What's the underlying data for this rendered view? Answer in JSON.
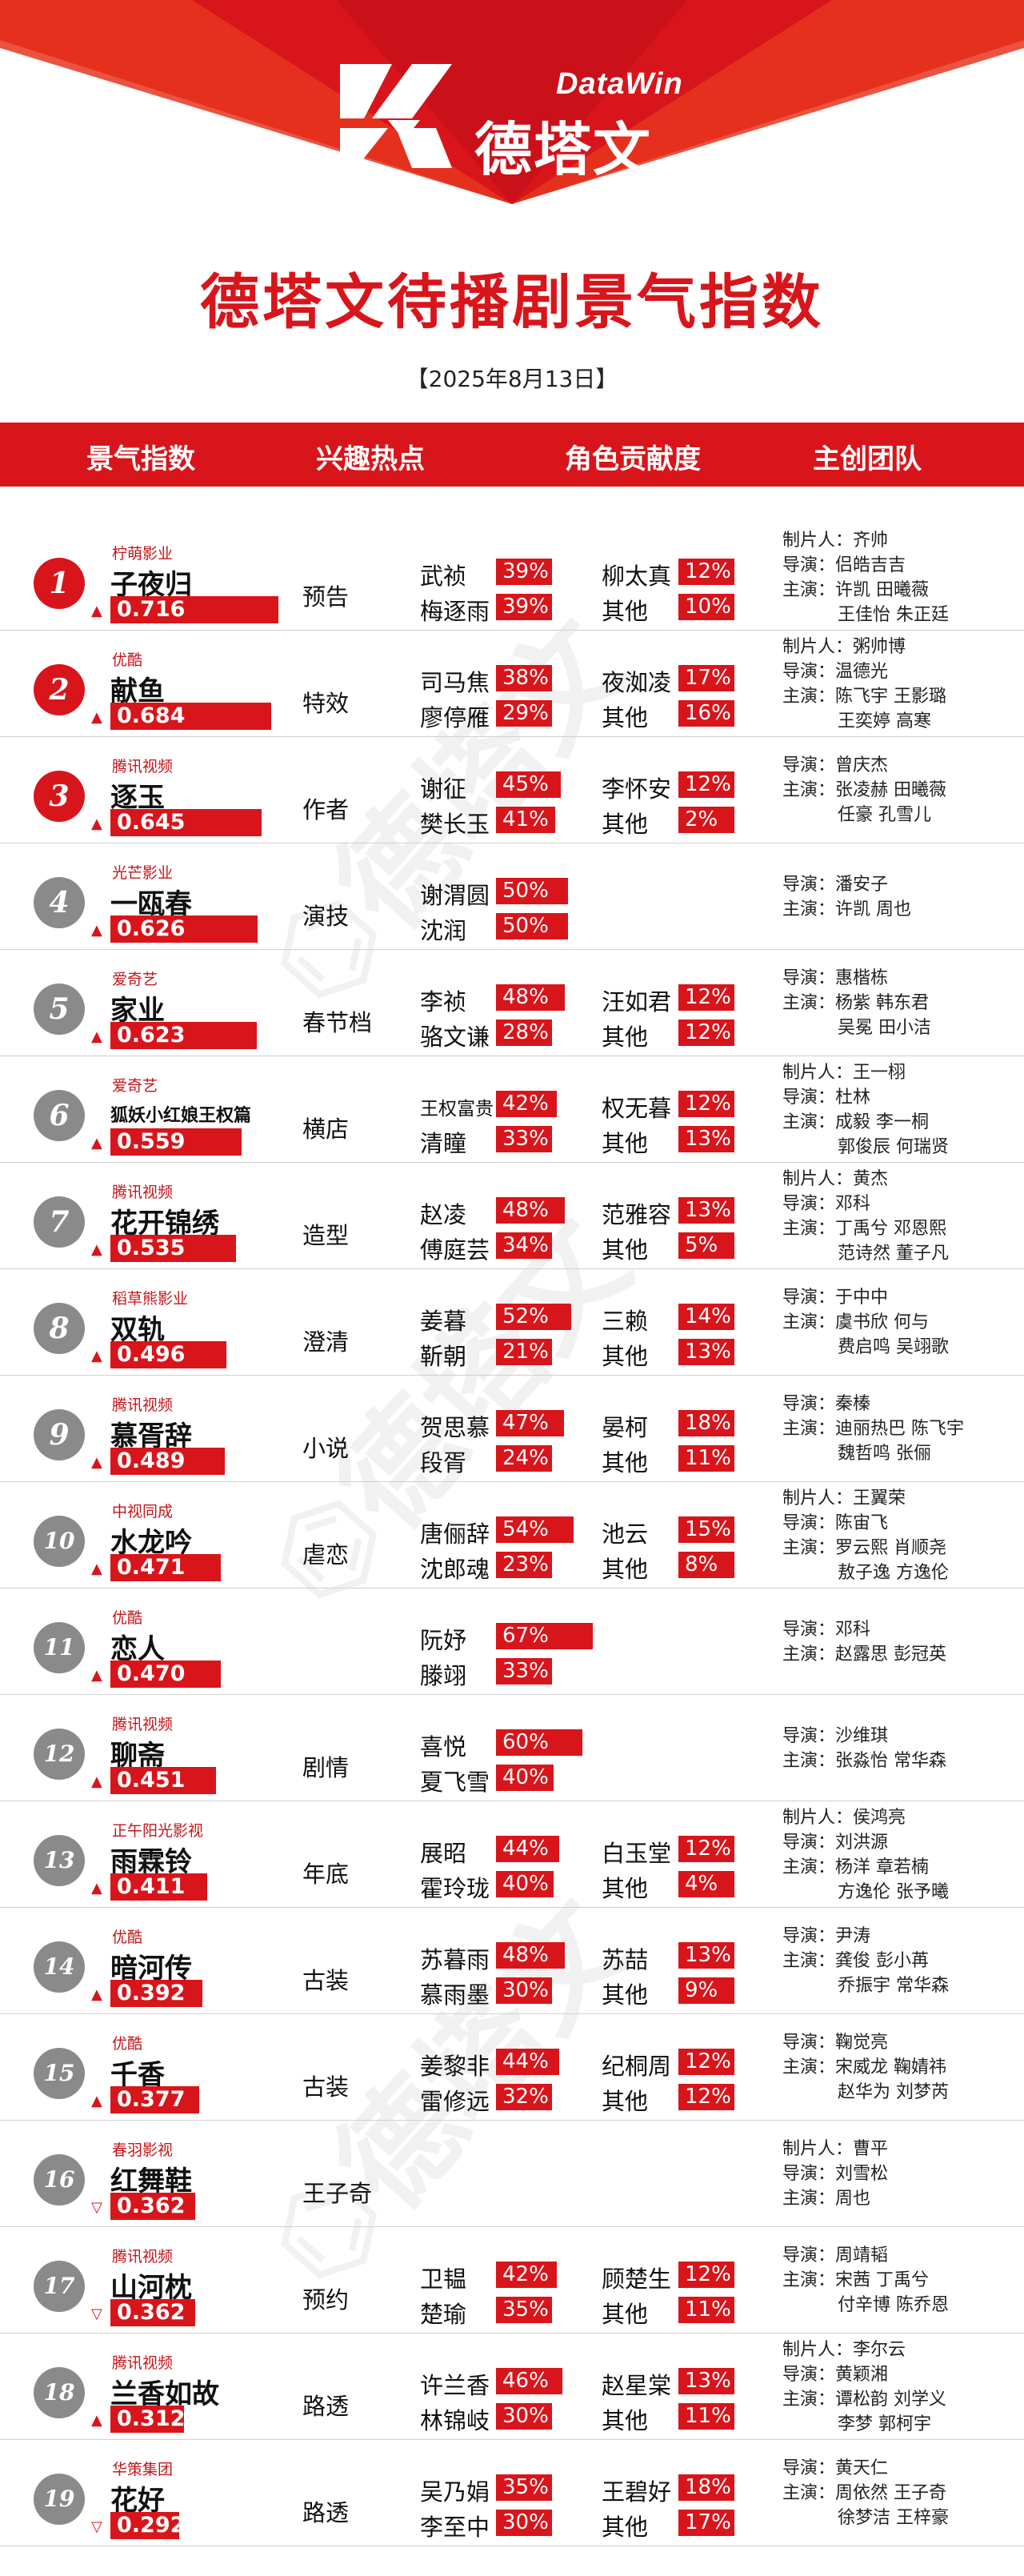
{
  "brand": {
    "name_en": "DataWin",
    "name_cn": "德塔文"
  },
  "title": "德塔文待播剧景气指数",
  "date": "【2025年8月13日】",
  "columns": [
    "景气指数",
    "兴趣热点",
    "角色贡献度",
    "主创团队"
  ],
  "colors": {
    "accent": "#d8151b",
    "badge_gray": "#8a8a8a"
  },
  "chart_data": {
    "type": "table",
    "rows": [
      {
        "rank": "1",
        "platform": "柠萌影业",
        "drama": "子夜归",
        "trend": "up",
        "score": 0.716,
        "score_label": "0.716",
        "hotspot": "预告",
        "roles": [
          {
            "name": "武祯",
            "pct": 39,
            "label": "39%"
          },
          {
            "name": "梅逐雨",
            "pct": 39,
            "label": "39%"
          },
          {
            "name": "柳太真",
            "pct": 12,
            "label": "12%"
          },
          {
            "name": "其他",
            "pct": 10,
            "label": "10%"
          }
        ],
        "team": [
          "制片人：齐帅",
          "导演：侣皓吉吉",
          "主演：许凯  田曦薇",
          "王佳怡  朱正廷"
        ]
      },
      {
        "rank": "2",
        "platform": "优酷",
        "drama": "献鱼",
        "trend": "up",
        "score": 0.684,
        "score_label": "0.684",
        "hotspot": "特效",
        "roles": [
          {
            "name": "司马焦",
            "pct": 38,
            "label": "38%"
          },
          {
            "name": "廖停雁",
            "pct": 29,
            "label": "29%"
          },
          {
            "name": "夜洳凌",
            "pct": 17,
            "label": "17%"
          },
          {
            "name": "其他",
            "pct": 16,
            "label": "16%"
          }
        ],
        "team": [
          "制片人：粥帅博",
          "导演：温德光",
          "主演：陈飞宇  王影璐",
          "王奕婷  高寒"
        ]
      },
      {
        "rank": "3",
        "platform": "腾讯视频",
        "drama": "逐玉",
        "trend": "up",
        "score": 0.645,
        "score_label": "0.645",
        "hotspot": "作者",
        "roles": [
          {
            "name": "谢征",
            "pct": 45,
            "label": "45%"
          },
          {
            "name": "樊长玉",
            "pct": 41,
            "label": "41%"
          },
          {
            "name": "李怀安",
            "pct": 12,
            "label": "12%"
          },
          {
            "name": "其他",
            "pct": 2,
            "label": "2%"
          }
        ],
        "team": [
          "导演：曾庆杰",
          "主演：张凌赫  田曦薇",
          "任豪  孔雪儿"
        ]
      },
      {
        "rank": "4",
        "platform": "光芒影业",
        "drama": "一瓯春",
        "trend": "up",
        "score": 0.626,
        "score_label": "0.626",
        "hotspot": "演技",
        "roles": [
          {
            "name": "谢渭圆",
            "pct": 50,
            "label": "50%"
          },
          {
            "name": "沈润",
            "pct": 50,
            "label": "50%"
          }
        ],
        "team": [
          "导演：潘安子",
          "主演：许凯  周也"
        ]
      },
      {
        "rank": "5",
        "platform": "爱奇艺",
        "drama": "家业",
        "trend": "up",
        "score": 0.623,
        "score_label": "0.623",
        "hotspot": "春节档",
        "roles": [
          {
            "name": "李祯",
            "pct": 48,
            "label": "48%"
          },
          {
            "name": "骆文谦",
            "pct": 28,
            "label": "28%"
          },
          {
            "name": "汪如君",
            "pct": 12,
            "label": "12%"
          },
          {
            "name": "其他",
            "pct": 12,
            "label": "12%"
          }
        ],
        "team": [
          "导演：惠楷栋",
          "主演：杨紫  韩东君",
          "吴冕  田小洁"
        ]
      },
      {
        "rank": "6",
        "platform": "爱奇艺",
        "drama": "狐妖小红娘王权篇",
        "trend": "up",
        "score": 0.559,
        "score_label": "0.559",
        "hotspot": "横店",
        "roles": [
          {
            "name": "王权富贵",
            "pct": 42,
            "label": "42%"
          },
          {
            "name": "清瞳",
            "pct": 33,
            "label": "33%"
          },
          {
            "name": "权无暮",
            "pct": 12,
            "label": "12%"
          },
          {
            "name": "其他",
            "pct": 13,
            "label": "13%"
          }
        ],
        "team": [
          "制片人：王一栩",
          "导演：杜林",
          "主演：成毅  李一桐",
          "郭俊辰  何瑞贤"
        ]
      },
      {
        "rank": "7",
        "platform": "腾讯视频",
        "drama": "花开锦绣",
        "trend": "up",
        "score": 0.535,
        "score_label": "0.535",
        "hotspot": "造型",
        "roles": [
          {
            "name": "赵凌",
            "pct": 48,
            "label": "48%"
          },
          {
            "name": "傅庭芸",
            "pct": 34,
            "label": "34%"
          },
          {
            "name": "范雅容",
            "pct": 13,
            "label": "13%"
          },
          {
            "name": "其他",
            "pct": 5,
            "label": "5%"
          }
        ],
        "team": [
          "制片人：黄杰",
          "导演：邓科",
          "主演：丁禹兮  邓恩熙",
          "范诗然  董子凡"
        ]
      },
      {
        "rank": "8",
        "platform": "稻草熊影业",
        "drama": "双轨",
        "trend": "up",
        "score": 0.496,
        "score_label": "0.496",
        "hotspot": "澄清",
        "roles": [
          {
            "name": "姜暮",
            "pct": 52,
            "label": "52%"
          },
          {
            "name": "靳朝",
            "pct": 21,
            "label": "21%"
          },
          {
            "name": "三赖",
            "pct": 14,
            "label": "14%"
          },
          {
            "name": "其他",
            "pct": 13,
            "label": "13%"
          }
        ],
        "team": [
          "导演：于中中",
          "主演：虞书欣  何与",
          "费启鸣  吴翊歌"
        ]
      },
      {
        "rank": "9",
        "platform": "腾讯视频",
        "drama": "慕胥辞",
        "trend": "up",
        "score": 0.489,
        "score_label": "0.489",
        "hotspot": "小说",
        "roles": [
          {
            "name": "贺思慕",
            "pct": 47,
            "label": "47%"
          },
          {
            "name": "段胥",
            "pct": 24,
            "label": "24%"
          },
          {
            "name": "晏柯",
            "pct": 18,
            "label": "18%"
          },
          {
            "name": "其他",
            "pct": 11,
            "label": "11%"
          }
        ],
        "team": [
          "导演：秦榛",
          "主演：迪丽热巴  陈飞宇",
          "魏哲鸣  张俪"
        ]
      },
      {
        "rank": "10",
        "platform": "中视同成",
        "drama": "水龙吟",
        "trend": "up",
        "score": 0.471,
        "score_label": "0.471",
        "hotspot": "虐恋",
        "roles": [
          {
            "name": "唐俪辞",
            "pct": 54,
            "label": "54%"
          },
          {
            "name": "沈郎魂",
            "pct": 23,
            "label": "23%"
          },
          {
            "name": "池云",
            "pct": 15,
            "label": "15%"
          },
          {
            "name": "其他",
            "pct": 8,
            "label": "8%"
          }
        ],
        "team": [
          "制片人：王翼荣",
          "导演：陈宙飞",
          "主演：罗云熙  肖顺尧",
          "敖子逸  方逸伦"
        ]
      },
      {
        "rank": "11",
        "platform": "优酷",
        "drama": "恋人",
        "trend": "up",
        "score": 0.47,
        "score_label": "0.470",
        "hotspot": "",
        "roles": [
          {
            "name": "阮妤",
            "pct": 67,
            "label": "67%"
          },
          {
            "name": "滕翊",
            "pct": 33,
            "label": "33%"
          }
        ],
        "team": [
          "导演：邓科",
          "主演：赵露思  彭冠英"
        ]
      },
      {
        "rank": "12",
        "platform": "腾讯视频",
        "drama": "聊斋",
        "trend": "up",
        "score": 0.451,
        "score_label": "0.451",
        "hotspot": "剧情",
        "roles": [
          {
            "name": "喜悦",
            "pct": 60,
            "label": "60%"
          },
          {
            "name": "夏飞雪",
            "pct": 40,
            "label": "40%"
          }
        ],
        "team": [
          "导演：沙维琪",
          "主演：张淼怡  常华森"
        ]
      },
      {
        "rank": "13",
        "platform": "正午阳光影视",
        "drama": "雨霖铃",
        "trend": "up",
        "score": 0.411,
        "score_label": "0.411",
        "hotspot": "年底",
        "roles": [
          {
            "name": "展昭",
            "pct": 44,
            "label": "44%"
          },
          {
            "name": "霍玲珑",
            "pct": 40,
            "label": "40%"
          },
          {
            "name": "白玉堂",
            "pct": 12,
            "label": "12%"
          },
          {
            "name": "其他",
            "pct": 4,
            "label": "4%"
          }
        ],
        "team": [
          "制片人：侯鸿亮",
          "导演：刘洪源",
          "主演：杨洋  章若楠",
          "方逸伦  张予曦"
        ]
      },
      {
        "rank": "14",
        "platform": "优酷",
        "drama": "暗河传",
        "trend": "up",
        "score": 0.392,
        "score_label": "0.392",
        "hotspot": "古装",
        "roles": [
          {
            "name": "苏暮雨",
            "pct": 48,
            "label": "48%"
          },
          {
            "name": "慕雨墨",
            "pct": 30,
            "label": "30%"
          },
          {
            "name": "苏喆",
            "pct": 13,
            "label": "13%"
          },
          {
            "name": "其他",
            "pct": 9,
            "label": "9%"
          }
        ],
        "team": [
          "导演：尹涛",
          "主演：龚俊  彭小苒",
          "乔振宇  常华森"
        ]
      },
      {
        "rank": "15",
        "platform": "优酷",
        "drama": "千香",
        "trend": "up",
        "score": 0.377,
        "score_label": "0.377",
        "hotspot": "古装",
        "roles": [
          {
            "name": "姜黎非",
            "pct": 44,
            "label": "44%"
          },
          {
            "name": "雷修远",
            "pct": 32,
            "label": "32%"
          },
          {
            "name": "纪桐周",
            "pct": 12,
            "label": "12%"
          },
          {
            "name": "其他",
            "pct": 12,
            "label": "12%"
          }
        ],
        "team": [
          "导演：鞠觉亮",
          "主演：宋威龙  鞠婧祎",
          "赵华为  刘梦芮"
        ]
      },
      {
        "rank": "16",
        "platform": "春羽影视",
        "drama": "红舞鞋",
        "trend": "down",
        "score": 0.362,
        "score_label": "0.362",
        "hotspot": "王子奇",
        "roles": [],
        "team": [
          "制片人：曹平",
          "导演：刘雪松",
          "主演：周也"
        ]
      },
      {
        "rank": "17",
        "platform": "腾讯视频",
        "drama": "山河枕",
        "trend": "down",
        "score": 0.362,
        "score_label": "0.362",
        "hotspot": "预约",
        "roles": [
          {
            "name": "卫韫",
            "pct": 42,
            "label": "42%"
          },
          {
            "name": "楚瑜",
            "pct": 35,
            "label": "35%"
          },
          {
            "name": "顾楚生",
            "pct": 12,
            "label": "12%"
          },
          {
            "name": "其他",
            "pct": 11,
            "label": "11%"
          }
        ],
        "team": [
          "导演：周靖韬",
          "主演：宋茜  丁禹兮",
          "付辛博  陈乔恩"
        ]
      },
      {
        "rank": "18",
        "platform": "腾讯视频",
        "drama": "兰香如故",
        "trend": "up",
        "score": 0.312,
        "score_label": "0.312",
        "hotspot": "路透",
        "roles": [
          {
            "name": "许兰香",
            "pct": 46,
            "label": "46%"
          },
          {
            "name": "林锦岐",
            "pct": 30,
            "label": "30%"
          },
          {
            "name": "赵星棠",
            "pct": 13,
            "label": "13%"
          },
          {
            "name": "其他",
            "pct": 11,
            "label": "11%"
          }
        ],
        "team": [
          "制片人：李尔云",
          "导演：黄颖湘",
          "主演：谭松韵  刘学义",
          "李梦  郭柯宇"
        ]
      },
      {
        "rank": "19",
        "platform": "华策集团",
        "drama": "花好",
        "trend": "down",
        "score": 0.292,
        "score_label": "0.292",
        "hotspot": "路透",
        "roles": [
          {
            "name": "吴乃娟",
            "pct": 35,
            "label": "35%"
          },
          {
            "name": "李至中",
            "pct": 30,
            "label": "30%"
          },
          {
            "name": "王碧好",
            "pct": 18,
            "label": "18%"
          },
          {
            "name": "其他",
            "pct": 17,
            "label": "17%"
          }
        ],
        "team": [
          "导演：黄天仁",
          "主演：周依然  王子奇",
          "徐梦洁  王梓豪"
        ]
      }
    ]
  }
}
